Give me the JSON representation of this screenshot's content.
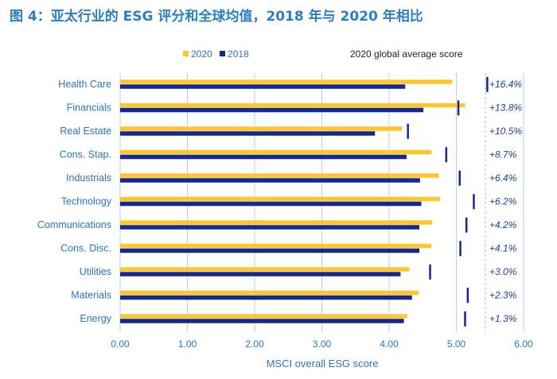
{
  "title": "图 4：亚太行业的 ESG 评分和全球均值，2018 年与 2020 年相比",
  "legend": {
    "series_2020": "2020",
    "series_2018": "2018",
    "average_label": "2020 global average score"
  },
  "colors": {
    "series_2020": "#FFC72C",
    "series_2018": "#14288F",
    "average_marker": "#14288F",
    "axis_text": "#2E75B6",
    "grid": "#A9D6F0",
    "change_text": "#1F3F8F"
  },
  "chart_data": {
    "type": "bar",
    "orientation": "horizontal",
    "categories": [
      "Health Care",
      "Financials",
      "Real Estate",
      "Cons. Stap.",
      "Industrials",
      "Technology",
      "Communications",
      "Cons. Disc.",
      "Utilities",
      "Materials",
      "Energy"
    ],
    "series": [
      {
        "name": "2020",
        "values": [
          4.94,
          5.13,
          4.19,
          4.63,
          4.74,
          4.76,
          4.64,
          4.63,
          4.3,
          4.44,
          4.27
        ]
      },
      {
        "name": "2018",
        "values": [
          4.24,
          4.51,
          3.79,
          4.26,
          4.46,
          4.48,
          4.45,
          4.45,
          4.17,
          4.34,
          4.22
        ]
      }
    ],
    "global_average_2020": [
      5.46,
      5.03,
      4.28,
      4.85,
      5.05,
      5.26,
      5.15,
      5.06,
      4.61,
      5.17,
      5.13
    ],
    "change_labels": [
      "+16.4%",
      "+13.8%",
      "+10.5%",
      "+8.7%",
      "+6.4%",
      "+6.2%",
      "+4.2%",
      "+4.1%",
      "+3.0%",
      "+2.3%",
      "+1.3%"
    ],
    "xlabel": "MSCI overall ESG score",
    "xlim": [
      0,
      6
    ],
    "xticks": [
      "0.00",
      "1.00",
      "2.00",
      "3.00",
      "4.00",
      "5.00",
      "6.00"
    ],
    "grid": true,
    "legend_position": "top"
  }
}
